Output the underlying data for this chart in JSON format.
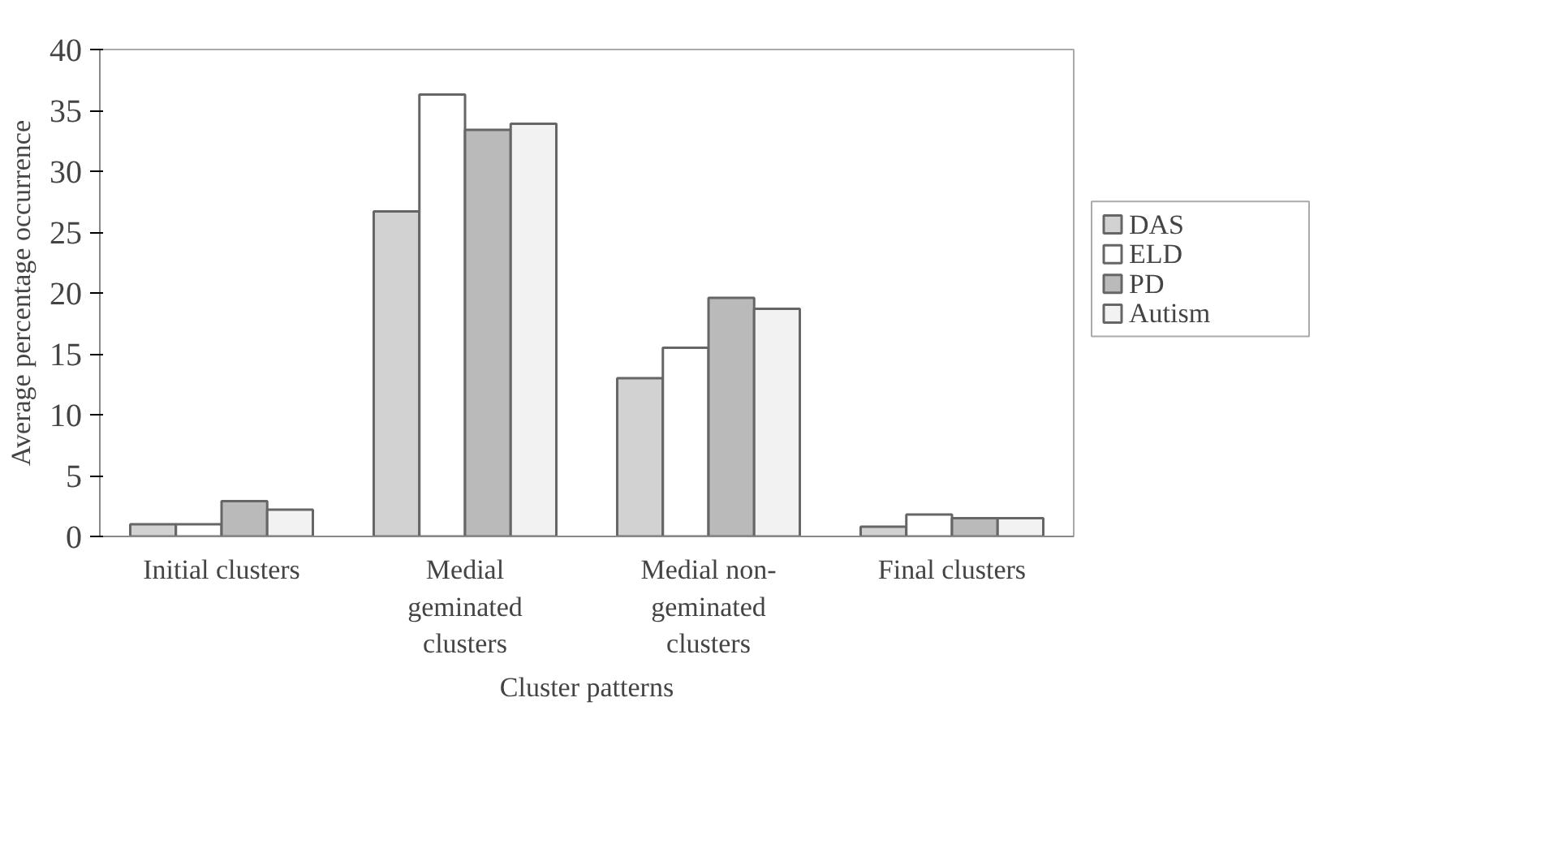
{
  "chart_data": {
    "type": "bar",
    "xlabel": "Cluster patterns",
    "ylabel": "Average percentage occurrence",
    "categories": [
      "Initial clusters",
      "Medial\ngeminated\nclusters",
      "Medial non-\ngeminated\nclusters",
      "Final clusters"
    ],
    "series": [
      {
        "name": "DAS",
        "color": "#d2d2d2",
        "values": [
          1.0,
          26.7,
          13.0,
          0.8
        ]
      },
      {
        "name": "ELD",
        "color": "#ffffff",
        "values": [
          1.0,
          36.3,
          15.5,
          1.8
        ]
      },
      {
        "name": "PD",
        "color": "#bababa",
        "values": [
          2.9,
          33.4,
          19.6,
          1.5
        ]
      },
      {
        "name": "Autism",
        "color": "#f2f2f2",
        "values": [
          2.2,
          33.9,
          18.7,
          1.5
        ]
      }
    ],
    "ylim": [
      0,
      40
    ],
    "yticks": [
      0,
      5,
      10,
      15,
      20,
      25,
      30,
      35,
      40
    ],
    "grid": false,
    "legend": "right"
  }
}
